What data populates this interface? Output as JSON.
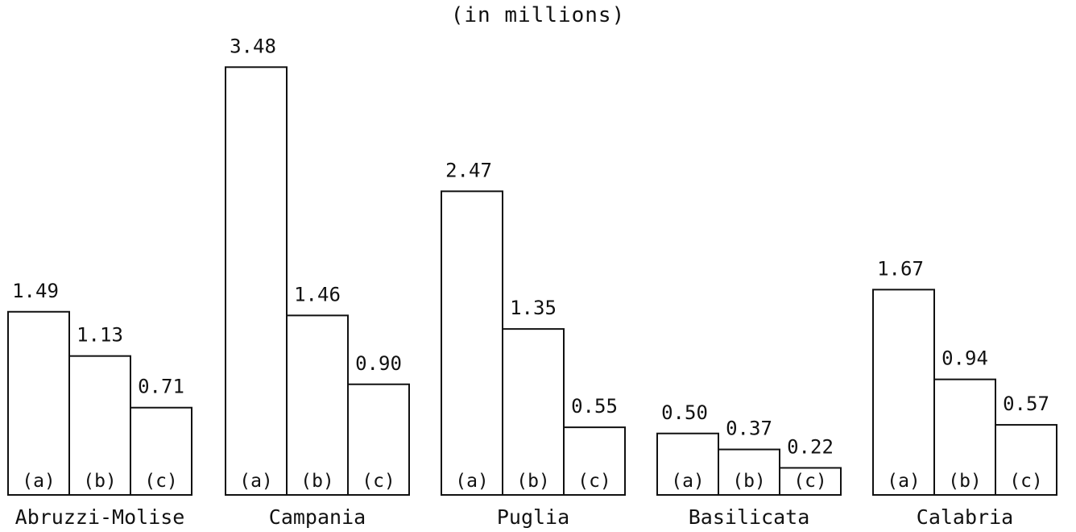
{
  "chart_data": {
    "type": "bar",
    "subtitle": "(in millions)",
    "categories": [
      "Abruzzi-Molise",
      "Campania",
      "Puglia",
      "Basilicata",
      "Calabria"
    ],
    "sub_labels": [
      "(a)",
      "(b)",
      "(c)"
    ],
    "values": [
      [
        "1.49",
        "1.13",
        "0.71"
      ],
      [
        "3.48",
        "1.46",
        "0.90"
      ],
      [
        "2.47",
        "1.35",
        "0.55"
      ],
      [
        "0.50",
        "0.37",
        "0.22"
      ],
      [
        "1.67",
        "0.94",
        "0.57"
      ]
    ],
    "ylim": [
      0,
      3.6
    ],
    "colors": {
      "stroke": "#111111",
      "fill": "#ffffff"
    }
  }
}
